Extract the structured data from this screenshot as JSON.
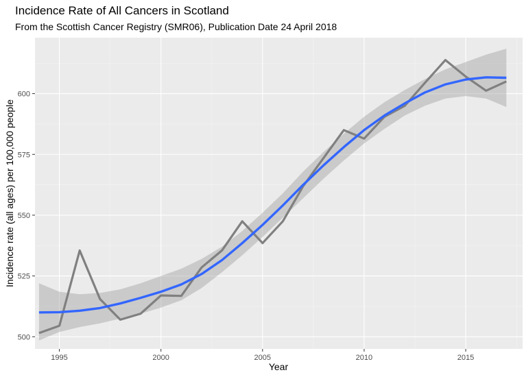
{
  "chart_data": {
    "type": "line",
    "title": "Incidence Rate of All Cancers in Scotland",
    "subtitle": "From the Scottish Cancer Registry (SMR06), Publication Date 24 April 2018",
    "xlabel": "Year",
    "ylabel": "Incidence rate (all ages) per 100,000 people",
    "xlim": [
      1993.8,
      2017.8
    ],
    "ylim": [
      495,
      623
    ],
    "x_ticks": [
      1995,
      2000,
      2005,
      2010,
      2015
    ],
    "y_ticks": [
      500,
      525,
      550,
      575,
      600
    ],
    "grid": true,
    "background": "#ebebeb",
    "series": [
      {
        "color": "#808080",
        "x": [
          1994,
          1995,
          1996,
          1997,
          1998,
          1999,
          2000,
          2001,
          2002,
          2003,
          2004,
          2005,
          2006,
          2007,
          2008,
          2009,
          2010,
          2011,
          2012,
          2013,
          2014,
          2015,
          2016,
          2017
        ],
        "values": [
          501.5,
          504.5,
          535.5,
          515.5,
          507.0,
          509.5,
          517.0,
          516.8,
          528.5,
          535.5,
          547.5,
          538.5,
          547.5,
          562.0,
          573.5,
          585.0,
          581.5,
          590.5,
          595.0,
          604.5,
          613.8,
          607.0,
          601.2,
          605.0
        ]
      },
      {
        "color": "#3366ff",
        "smooth": true,
        "x": [
          1994,
          1995,
          1996,
          1997,
          1998,
          1999,
          2000,
          2001,
          2002,
          2003,
          2004,
          2005,
          2006,
          2007,
          2008,
          2009,
          2010,
          2011,
          2012,
          2013,
          2014,
          2015,
          2016,
          2017
        ],
        "values": [
          510.0,
          510.1,
          510.7,
          511.8,
          513.7,
          516.0,
          518.5,
          521.5,
          525.8,
          531.5,
          538.5,
          546.0,
          554.0,
          562.5,
          570.5,
          578.0,
          585.0,
          591.0,
          596.0,
          600.5,
          603.8,
          605.8,
          606.7,
          606.5
        ],
        "ci_lower": [
          498.5,
          502.0,
          504.0,
          505.5,
          507.5,
          509.5,
          512.0,
          515.0,
          520.0,
          526.5,
          533.5,
          541.0,
          549.0,
          557.0,
          565.0,
          572.5,
          579.5,
          585.5,
          591.0,
          595.0,
          598.0,
          599.0,
          598.0,
          594.5
        ],
        "ci_upper": [
          522.0,
          518.5,
          517.5,
          518.0,
          519.5,
          522.0,
          525.0,
          528.0,
          532.0,
          537.0,
          543.5,
          551.0,
          559.0,
          568.0,
          576.0,
          583.5,
          590.5,
          596.5,
          601.5,
          606.0,
          610.0,
          613.0,
          616.0,
          618.5
        ]
      }
    ]
  }
}
